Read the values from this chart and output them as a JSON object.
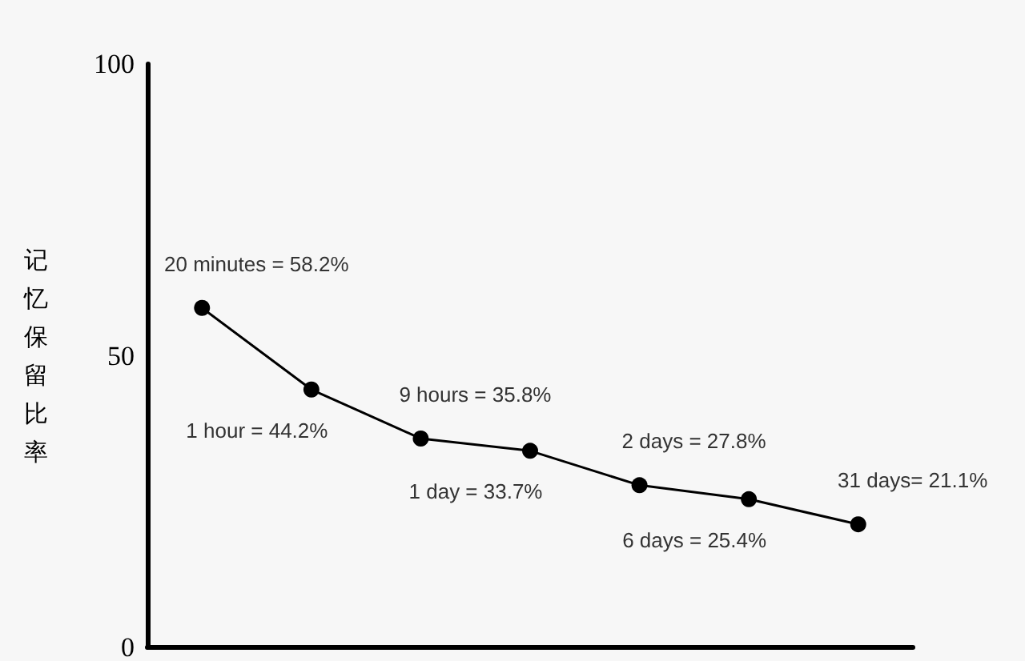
{
  "chart_data": {
    "type": "line",
    "ylabel": "记忆保留比率",
    "categories": [
      null,
      null,
      null,
      null,
      null,
      null,
      null
    ],
    "values": [
      58.2,
      44.2,
      35.8,
      33.7,
      27.8,
      25.4,
      21.1
    ],
    "value_labels": [
      "20 minutes = 58.2%",
      "1 hour = 44.2%",
      "9 hours = 35.8%",
      "1 day = 33.7%",
      "2 days = 27.8%",
      "6 days = 25.4%",
      "31 days= 21.1%"
    ],
    "color": "#000000",
    "ylim": [
      0,
      100
    ],
    "yticks": [
      0,
      50,
      100
    ],
    "marker": "circle",
    "line_style": "solid",
    "tick_labels": "y"
  }
}
